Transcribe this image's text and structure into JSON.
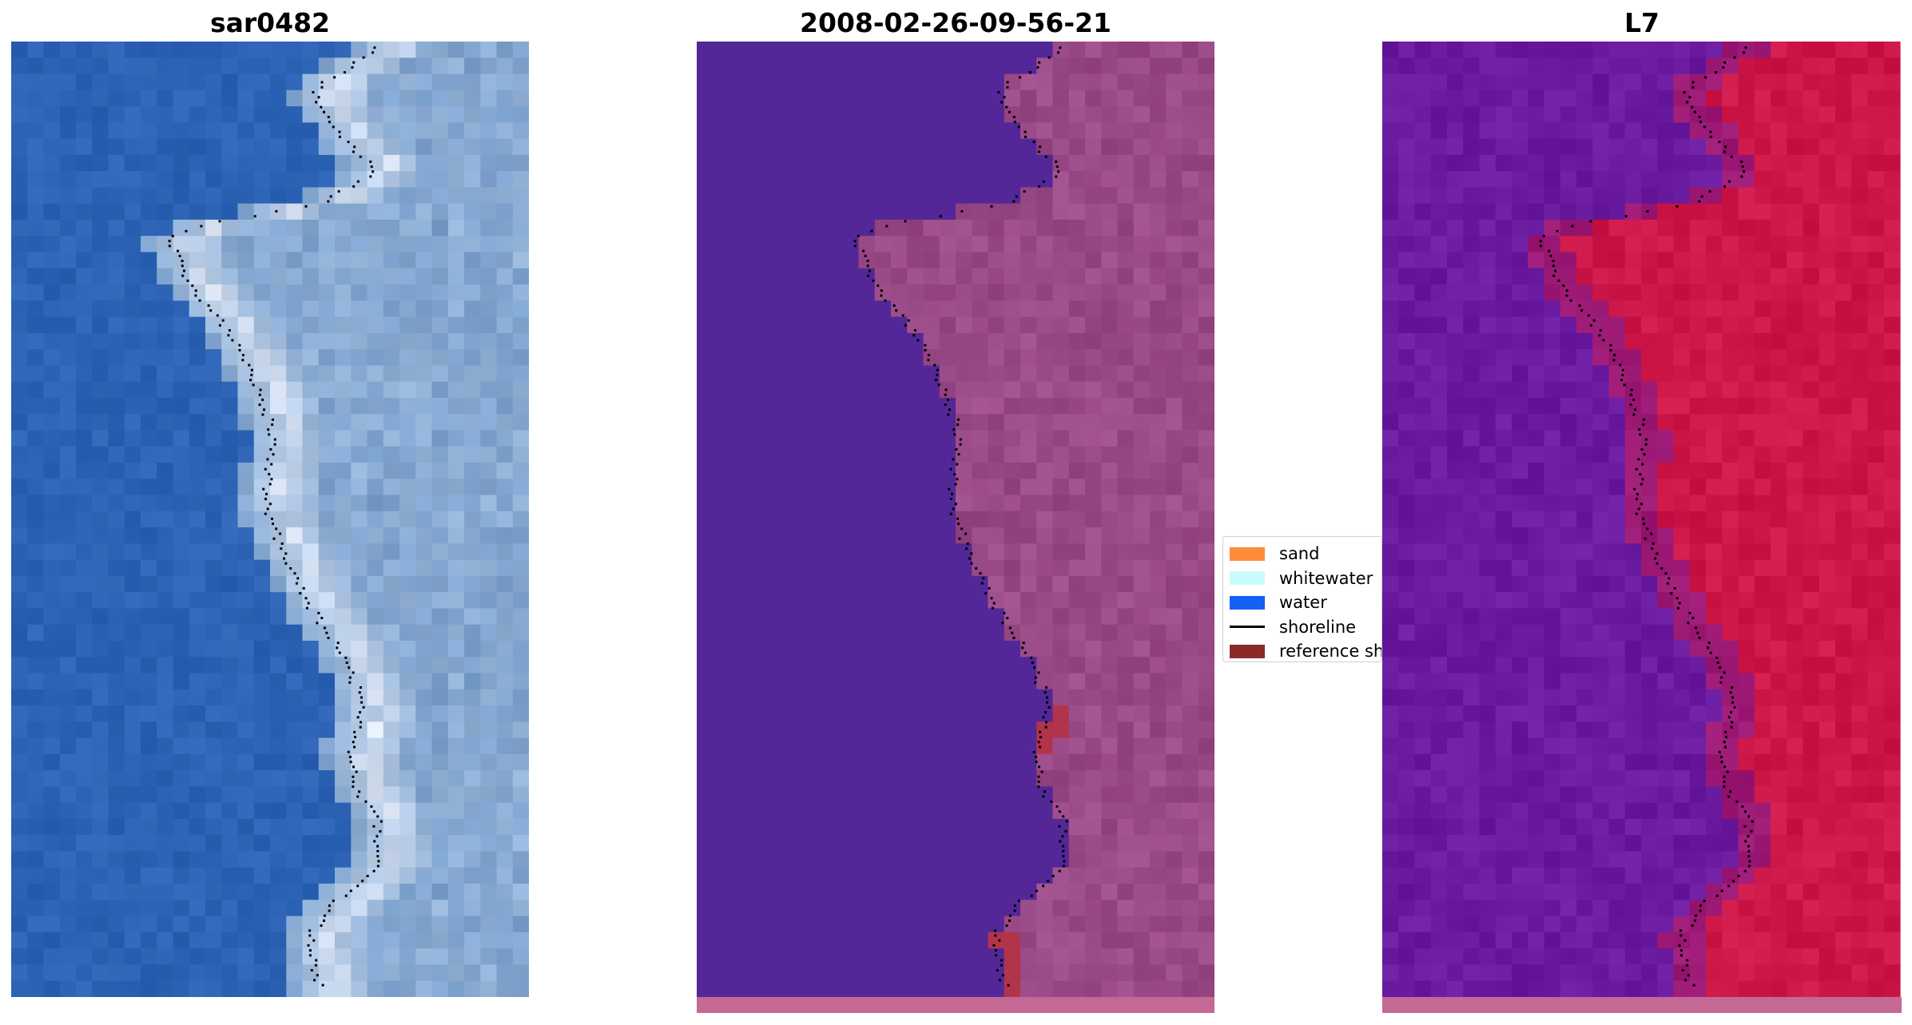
{
  "panels": [
    {
      "title": "sar0482"
    },
    {
      "title": "2008-02-26-09-56-21"
    },
    {
      "title": "L7"
    }
  ],
  "legend": {
    "items": [
      {
        "label": "sand",
        "color": "#ff8c3a",
        "kind": "patch"
      },
      {
        "label": "whitewater",
        "color": "#c8fcfc",
        "kind": "patch"
      },
      {
        "label": "water",
        "color": "#1560f5",
        "kind": "patch"
      },
      {
        "label": "shoreline",
        "color": "#000000",
        "kind": "line"
      },
      {
        "label": "reference shoreline",
        "color": "#8c2a2a",
        "kind": "patch"
      }
    ]
  },
  "colors": {
    "rgb_water": "#2d63b4",
    "rgb_land": "#7aa0cc",
    "rgb_surf": "#e6ecf8",
    "class_water": "#532797",
    "class_land": "#9a4a86",
    "class_sand": "#b2344a",
    "ndwi_water": "#6a1ba0",
    "ndwi_land": "#cc1748",
    "strip": "#c46896"
  }
}
